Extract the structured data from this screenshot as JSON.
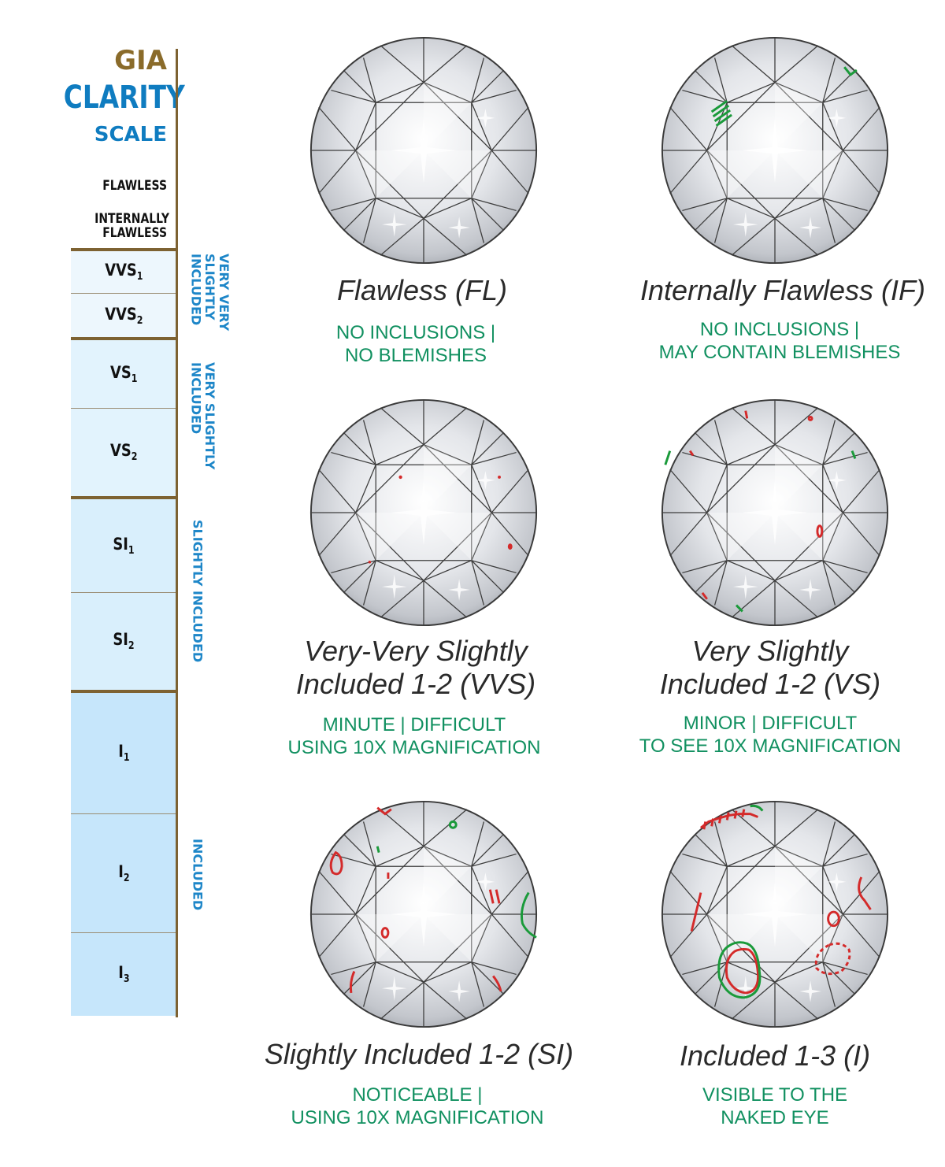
{
  "scale": {
    "title_line1": "GIA",
    "title_line2": "CLARITY",
    "title_line3": "SCALE",
    "top_grades": [
      {
        "label": "FLAWLESS"
      },
      {
        "label_line1": "INTERNALLY",
        "label_line2": "FLAWLESS"
      }
    ],
    "cells": [
      {
        "base": "VVS",
        "sub": "1",
        "color": "#edf7fd"
      },
      {
        "base": "VVS",
        "sub": "2",
        "color": "#edf7fd"
      },
      {
        "base": "VS",
        "sub": "1",
        "color": "#e2f3fd"
      },
      {
        "base": "VS",
        "sub": "2",
        "color": "#e2f3fd"
      },
      {
        "base": "SI",
        "sub": "1",
        "color": "#d9effc"
      },
      {
        "base": "SI",
        "sub": "2",
        "color": "#d9effc"
      },
      {
        "base": "I",
        "sub": "1",
        "color": "#c6e6fb"
      },
      {
        "base": "I",
        "sub": "2",
        "color": "#c6e6fb"
      },
      {
        "base": "I",
        "sub": "3",
        "color": "#c6e6fb"
      }
    ],
    "groups": [
      {
        "line1": "VERY VERY",
        "line2": "SLIGHTLY",
        "line3": "INCLUDED"
      },
      {
        "line1": "VERY SLIGHTLY",
        "line2": "INCLUDED"
      },
      {
        "line1": "SLIGHTLY INCLUDED"
      },
      {
        "line1": "INCLUDED"
      }
    ],
    "colors": {
      "gold": "#8a6b2a",
      "blue": "#0f7cc0",
      "label_blue": "#1d86c8"
    }
  },
  "grades": [
    {
      "title_line1": "Flawless (FL)",
      "desc_line1": "NO INCLUSIONS |",
      "desc_line2": "NO BLEMISHES"
    },
    {
      "title_line1": "Internally Flawless (IF)",
      "desc_line1": "NO INCLUSIONS |",
      "desc_line2": "MAY CONTAIN BLEMISHES"
    },
    {
      "title_line1": "Very-Very Slightly",
      "title_line2": "Included 1-2 (VVS)",
      "desc_line1": "MINUTE | DIFFICULT",
      "desc_line2": "USING 10X MAGNIFICATION"
    },
    {
      "title_line1": "Very Slightly",
      "title_line2": "Included 1-2 (VS)",
      "desc_line1": "MINOR | DIFFICULT",
      "desc_line2": "TO SEE 10X MAGNIFICATION"
    },
    {
      "title_line1": "Slightly Included 1-2 (SI)",
      "desc_line1": "NOTICEABLE |",
      "desc_line2": "USING 10X MAGNIFICATION"
    },
    {
      "title_line1": "Included 1-3 (I)",
      "desc_line1": "VISIBLE TO THE",
      "desc_line2": "NAKED EYE"
    }
  ],
  "palette": {
    "title_text": "#2a2a2a",
    "desc_green": "#119060",
    "inclusion_red": "#d42a2a",
    "inclusion_green": "#1a9a3a"
  }
}
